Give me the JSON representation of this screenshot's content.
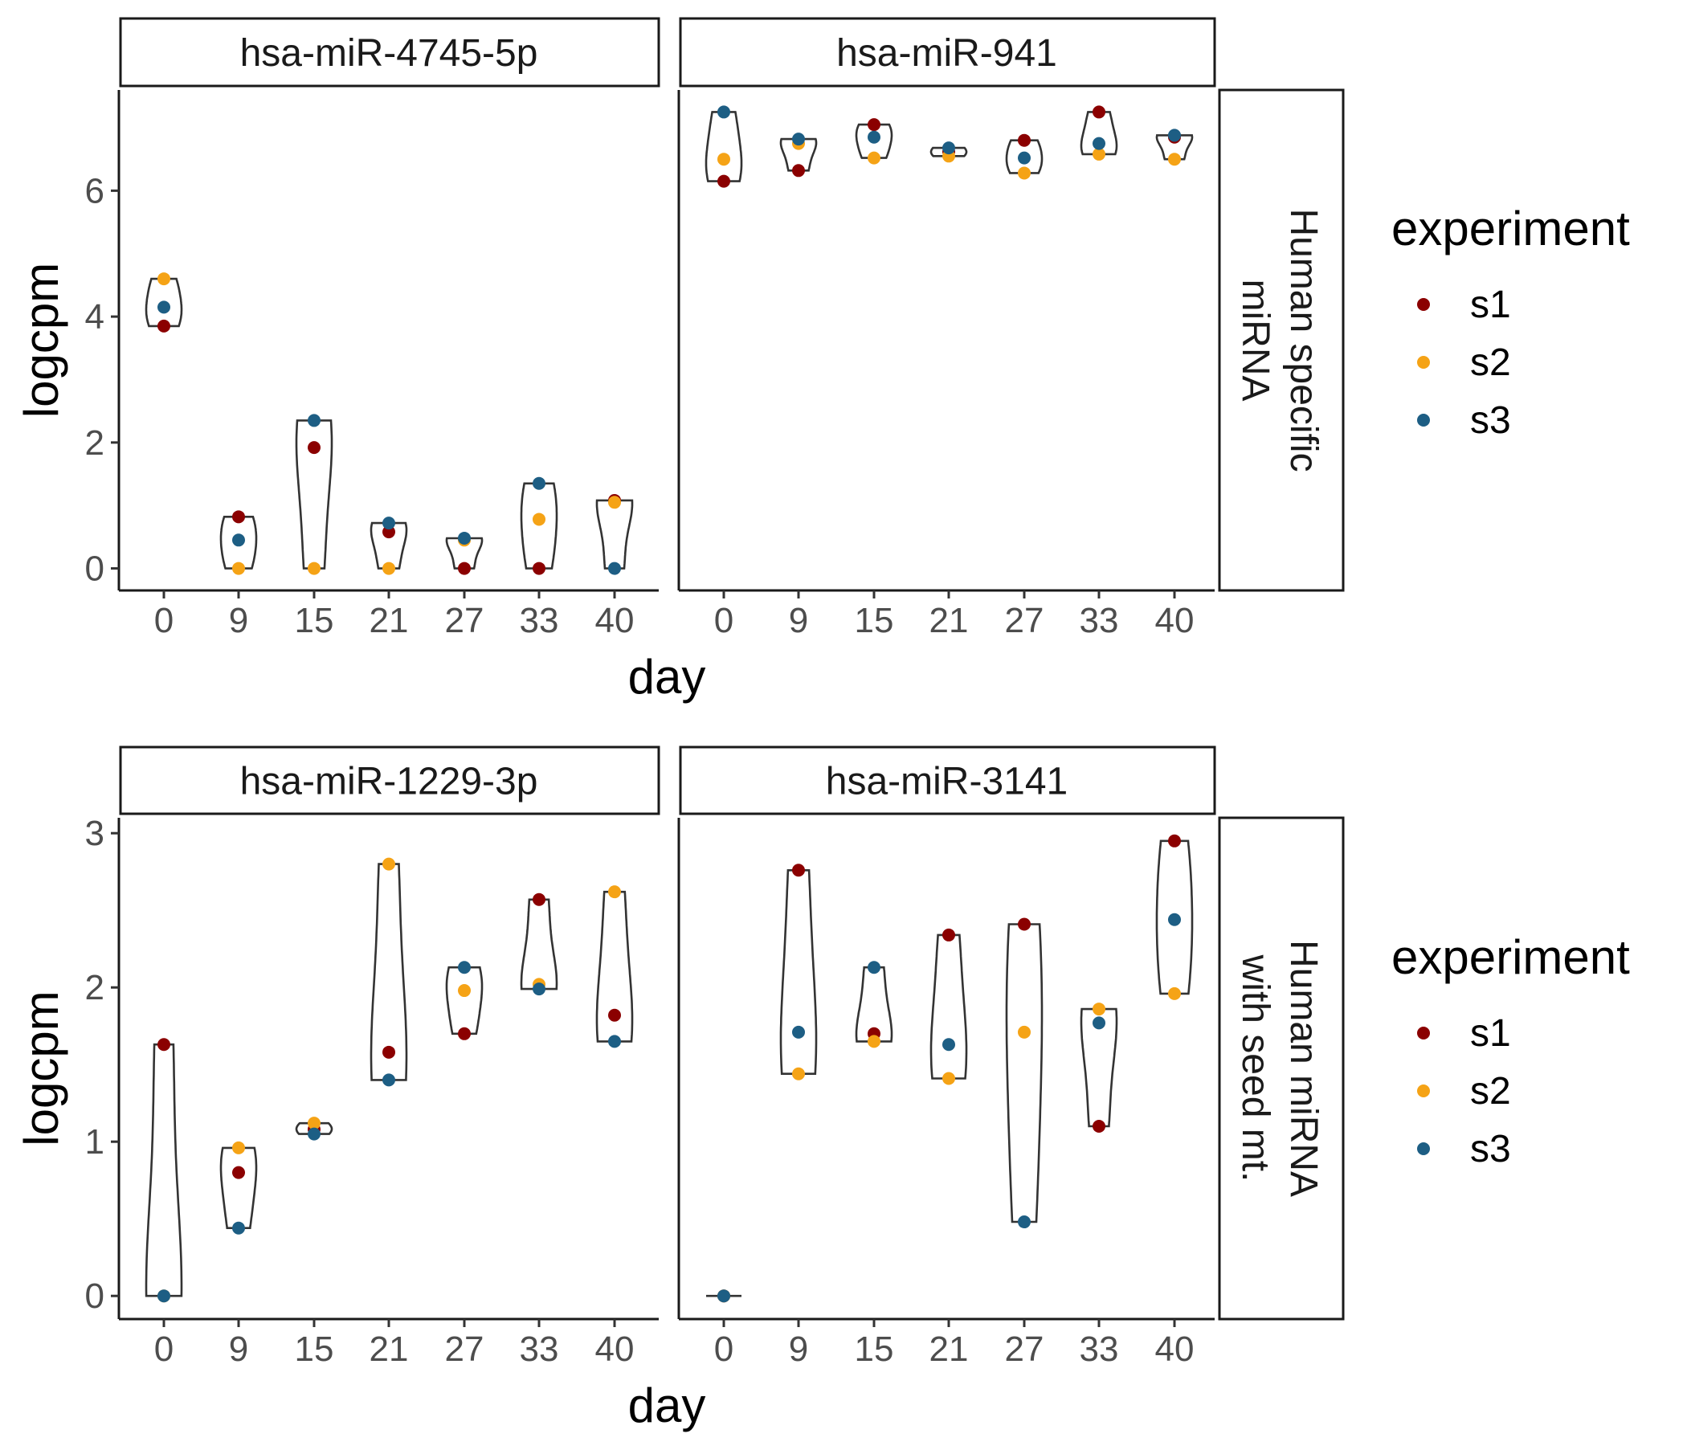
{
  "chart_data": [
    {
      "type": "violin",
      "row_label": "Human specific\nmiRNA",
      "xlabel": "day",
      "ylabel": "logcpm",
      "x_ticks": [
        "0",
        "9",
        "15",
        "21",
        "27",
        "33",
        "40"
      ],
      "y_ticks": [
        "0",
        "2",
        "4",
        "6"
      ],
      "ylim": [
        -0.35,
        7.6
      ],
      "panels": [
        {
          "title": "hsa-miR-4745-5p",
          "points": {
            "s1": [
              3.85,
              0.82,
              1.92,
              0.58,
              0.0,
              0.0,
              1.08
            ],
            "s2": [
              4.6,
              0.0,
              0.0,
              0.0,
              0.45,
              0.78,
              1.05
            ],
            "s3": [
              4.15,
              0.45,
              2.35,
              0.72,
              0.48,
              1.35,
              0.0
            ]
          }
        },
        {
          "title": "hsa-miR-941",
          "points": {
            "s1": [
              6.15,
              6.32,
              7.05,
              6.62,
              6.8,
              7.25,
              6.85
            ],
            "s2": [
              6.5,
              6.75,
              6.52,
              6.55,
              6.28,
              6.58,
              6.5
            ],
            "s3": [
              7.25,
              6.82,
              6.85,
              6.68,
              6.52,
              6.75,
              6.88
            ]
          }
        }
      ]
    },
    {
      "type": "violin",
      "row_label": "Human miRNA\nwith seed mt.",
      "xlabel": "day",
      "ylabel": "logcpm",
      "x_ticks": [
        "0",
        "9",
        "15",
        "21",
        "27",
        "33",
        "40"
      ],
      "y_ticks": [
        "0",
        "1",
        "2",
        "3"
      ],
      "ylim": [
        -0.15,
        3.1
      ],
      "panels": [
        {
          "title": "hsa-miR-1229-3p",
          "points": {
            "s1": [
              1.63,
              0.8,
              1.08,
              1.58,
              1.7,
              2.57,
              1.82
            ],
            "s2": [
              0.0,
              0.96,
              1.12,
              2.8,
              1.98,
              2.02,
              2.62
            ],
            "s3": [
              0.0,
              0.44,
              1.05,
              1.4,
              2.13,
              1.99,
              1.65
            ]
          }
        },
        {
          "title": "hsa-miR-3141",
          "points": {
            "s1": [
              0.0,
              2.76,
              1.7,
              2.34,
              2.41,
              1.1,
              2.95
            ],
            "s2": [
              0.0,
              1.44,
              1.65,
              1.41,
              1.71,
              1.86,
              1.96
            ],
            "s3": [
              0.0,
              1.71,
              2.13,
              1.63,
              0.48,
              1.77,
              2.44
            ]
          }
        }
      ]
    }
  ],
  "legend": {
    "title": "experiment",
    "items": [
      {
        "label": "s1",
        "color": "#8b0000"
      },
      {
        "label": "s2",
        "color": "#f5a316"
      },
      {
        "label": "s3",
        "color": "#1d5e84"
      }
    ]
  }
}
